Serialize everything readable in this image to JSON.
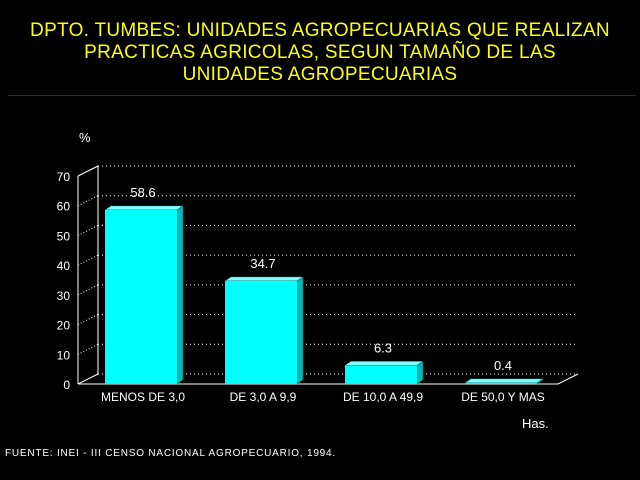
{
  "title_lines": [
    "DPTO. TUMBES: UNIDADES AGROPECUARIAS QUE REALIZAN",
    "PRACTICAS AGRICOLAS, SEGUN TAMAÑO DE LAS",
    "UNIDADES AGROPECUARIAS"
  ],
  "source": "FUENTE: INEI - III CENSO NACIONAL AGROPECUARIO, 1994.",
  "colors": {
    "title": "#ffff00",
    "bar": "#00ffff",
    "rule": "#1a1aa8"
  },
  "chart_data": {
    "type": "bar",
    "categories": [
      "MENOS DE 3,0",
      "DE 3,0 A 9,9",
      "DE 10,0 A 49,9",
      "DE 50,0 Y MAS"
    ],
    "values": [
      58.6,
      34.7,
      6.3,
      0.4
    ],
    "data_labels": [
      "58.6",
      "34.7",
      "6.3",
      "0.4"
    ],
    "ylabel": "%",
    "xlabel": "Has.",
    "ylim": [
      0,
      70
    ],
    "yticks": [
      0,
      10,
      20,
      30,
      40,
      50,
      60,
      70
    ],
    "grid": true,
    "three_d": true
  }
}
